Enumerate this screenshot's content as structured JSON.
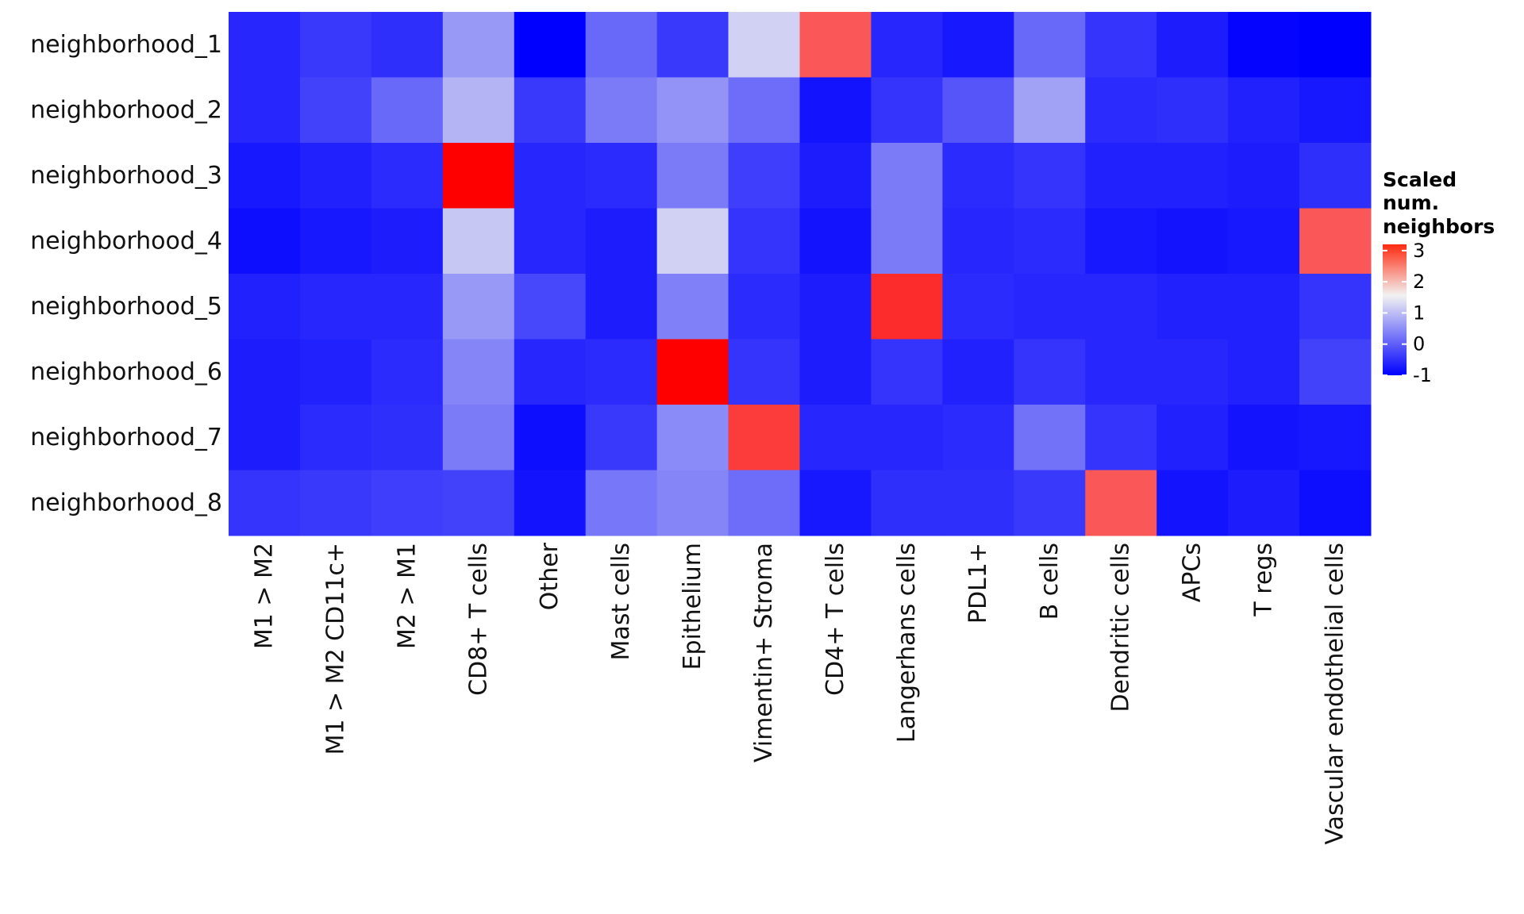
{
  "chart_data": {
    "type": "heatmap",
    "rows": [
      "neighborhood_1",
      "neighborhood_2",
      "neighborhood_3",
      "neighborhood_4",
      "neighborhood_5",
      "neighborhood_6",
      "neighborhood_7",
      "neighborhood_8"
    ],
    "columns": [
      "M1 > M2",
      "M1 > M2 CD11c+",
      "M2 > M1",
      "CD8+ T cells",
      "Other",
      "Mast cells",
      "Epithelium",
      "Vimentin+ Stroma",
      "CD4+ T cells",
      "Langerhans cells",
      "PDL1+",
      "B cells",
      "Dendritic cells",
      "APCs",
      "T regs",
      "Vascular endothelial cells"
    ],
    "values": [
      [
        -0.6,
        -0.4,
        -0.5,
        0.6,
        -1.0,
        0.1,
        -0.4,
        1.2,
        2.6,
        -0.6,
        -0.75,
        0.1,
        -0.45,
        -0.7,
        -0.95,
        -1.0
      ],
      [
        -0.6,
        -0.3,
        0.1,
        0.9,
        -0.4,
        0.3,
        0.55,
        0.15,
        -0.8,
        -0.45,
        -0.1,
        0.7,
        -0.55,
        -0.5,
        -0.65,
        -0.75
      ],
      [
        -0.75,
        -0.65,
        -0.55,
        3.2,
        -0.6,
        -0.55,
        0.3,
        -0.35,
        -0.7,
        0.3,
        -0.55,
        -0.45,
        -0.65,
        -0.65,
        -0.7,
        -0.5
      ],
      [
        -0.85,
        -0.75,
        -0.7,
        1.1,
        -0.6,
        -0.7,
        1.2,
        -0.45,
        -0.8,
        0.3,
        -0.6,
        -0.55,
        -0.75,
        -0.8,
        -0.75,
        2.6
      ],
      [
        -0.65,
        -0.6,
        -0.6,
        0.6,
        -0.25,
        -0.7,
        0.35,
        -0.55,
        -0.7,
        2.9,
        -0.55,
        -0.6,
        -0.6,
        -0.65,
        -0.65,
        -0.45
      ],
      [
        -0.7,
        -0.65,
        -0.55,
        0.4,
        -0.6,
        -0.55,
        3.2,
        -0.45,
        -0.7,
        -0.45,
        -0.65,
        -0.45,
        -0.6,
        -0.6,
        -0.65,
        -0.3
      ],
      [
        -0.7,
        -0.55,
        -0.5,
        0.3,
        -0.85,
        -0.4,
        0.45,
        2.8,
        -0.6,
        -0.6,
        -0.55,
        0.2,
        -0.45,
        -0.65,
        -0.8,
        -0.75
      ],
      [
        -0.45,
        -0.4,
        -0.35,
        -0.3,
        -0.8,
        0.25,
        0.4,
        0.15,
        -0.75,
        -0.5,
        -0.5,
        -0.4,
        2.6,
        -0.8,
        -0.7,
        -0.85
      ]
    ],
    "legend": {
      "title_lines": [
        "Scaled",
        "num.",
        "neighbors"
      ],
      "ticks": [
        3,
        2,
        1,
        0,
        -1
      ],
      "tick_labels": [
        "3",
        "2",
        "1",
        "0",
        "-1"
      ],
      "range": [
        -1,
        3.2
      ],
      "colors": {
        "low": "#0000ff",
        "mid": "#f2f2f2",
        "high": "#ff0000"
      },
      "midpoint": 1.55
    }
  }
}
